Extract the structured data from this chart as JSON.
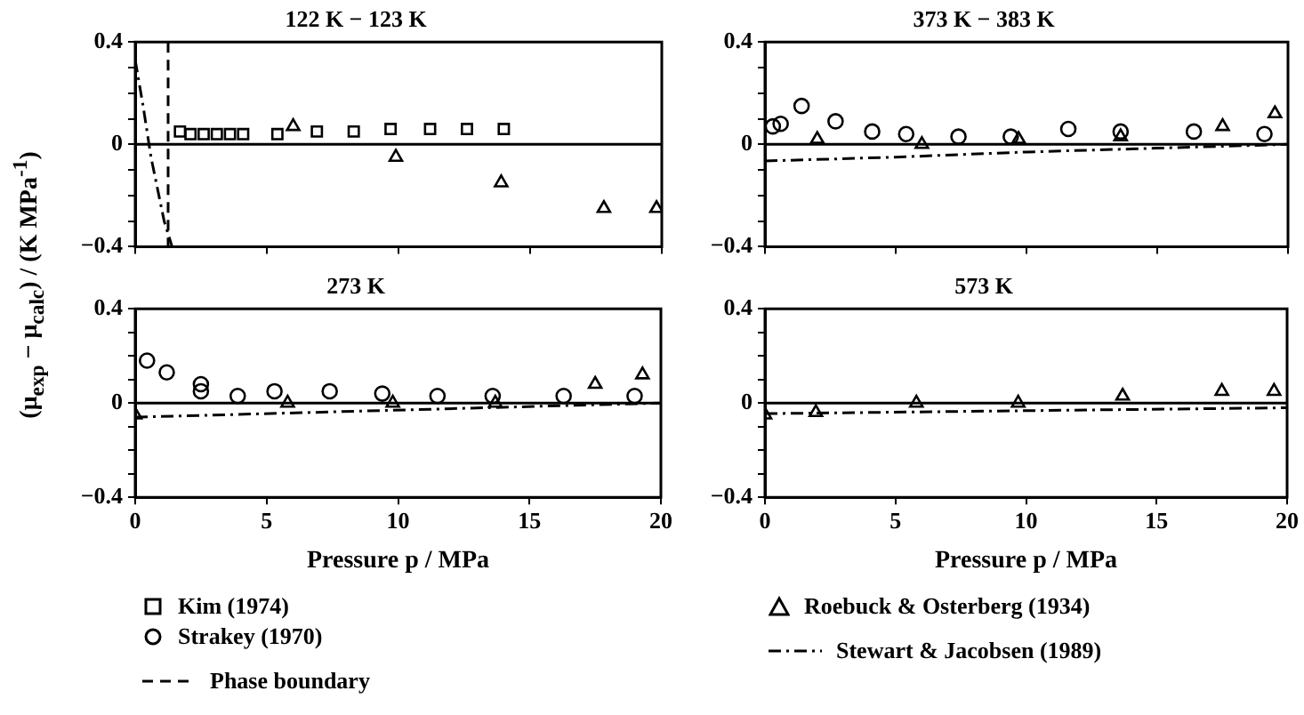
{
  "chart_data": [
    {
      "type": "scatter",
      "title": "122 K − 123 K",
      "ylabel": "(μ$_{exp}$ − μ$_{calc}$) / (K MPa$^{-1}$)",
      "xlim": [
        0,
        20
      ],
      "xticks": [
        0,
        5,
        10,
        15,
        20
      ],
      "ylim": [
        -0.4,
        0.4
      ],
      "yticks": [
        {
          "value": -0.4,
          "label": "−0.4"
        },
        {
          "value": -0.3,
          "label": null
        },
        {
          "value": -0.2,
          "label": null
        },
        {
          "value": -0.1,
          "label": null
        },
        {
          "value": 0,
          "label": "0"
        },
        {
          "value": 0.1,
          "label": null
        },
        {
          "value": 0.2,
          "label": null
        },
        {
          "value": 0.3,
          "label": null
        },
        {
          "value": 0.4,
          "label": "0.4"
        }
      ],
      "tick_labels": "y",
      "legend": "bottom",
      "ref_lines": [
        {
          "axis": "y",
          "value": 0
        }
      ],
      "series": [
        {
          "name": "Kim (1974)",
          "type": "scatter",
          "marker": "square",
          "color": "#000000",
          "x": [
            1.7,
            2.1,
            2.6,
            3.1,
            3.6,
            4.1,
            5.4,
            6.9,
            8.3,
            9.7,
            11.2,
            12.6,
            14.0
          ],
          "values": [
            0.05,
            0.04,
            0.04,
            0.04,
            0.04,
            0.04,
            0.04,
            0.05,
            0.05,
            0.06,
            0.06,
            0.06,
            0.06
          ]
        },
        {
          "type": "scatter",
          "marker": "triangle",
          "color": "#000000",
          "x": [
            6.0,
            9.9,
            13.9,
            17.8,
            19.8
          ],
          "values": [
            0.07,
            -0.05,
            -0.15,
            -0.25,
            -0.25
          ]
        },
        {
          "name": "Phase boundary",
          "type": "line",
          "marker": "none",
          "line_style": "dashed",
          "color": "#000000",
          "x": [
            1.25,
            1.25
          ],
          "values": [
            0.4,
            -0.4
          ]
        },
        {
          "type": "line",
          "marker": "none",
          "line_style": "dotted",
          "color": "#000000",
          "x": [
            0,
            0.3,
            0.6,
            0.9,
            1.1,
            1.4
          ],
          "values": [
            0.33,
            0.15,
            -0.05,
            -0.2,
            -0.3,
            -0.4
          ]
        }
      ]
    },
    {
      "type": "scatter",
      "title": "373 K − 383 K",
      "xlim": [
        0,
        20
      ],
      "xticks": [
        0,
        5,
        10,
        15,
        20
      ],
      "ylim": [
        -0.4,
        0.4
      ],
      "yticks": [
        {
          "value": -0.4,
          "label": "−0.4"
        },
        {
          "value": -0.3,
          "label": null
        },
        {
          "value": -0.2,
          "label": null
        },
        {
          "value": -0.1,
          "label": null
        },
        {
          "value": 0,
          "label": "0"
        },
        {
          "value": 0.1,
          "label": null
        },
        {
          "value": 0.2,
          "label": null
        },
        {
          "value": 0.3,
          "label": null
        },
        {
          "value": 0.4,
          "label": "0.4"
        }
      ],
      "tick_labels": "y",
      "legend": "bottom",
      "ref_lines": [
        {
          "axis": "y",
          "value": 0
        }
      ],
      "series": [
        {
          "type": "scatter",
          "marker": "circle",
          "color": "#000000",
          "x": [
            0.3,
            0.6,
            1.4,
            2.7,
            4.1,
            5.4,
            7.4,
            9.4,
            11.6,
            13.6,
            16.4,
            19.1
          ],
          "values": [
            0.07,
            0.08,
            0.15,
            0.09,
            0.05,
            0.04,
            0.03,
            0.03,
            0.06,
            0.05,
            0.05,
            0.04
          ]
        },
        {
          "name": "Roebuck & Osterberg (1934)",
          "type": "scatter",
          "marker": "triangle",
          "color": "#000000",
          "x": [
            2.0,
            6.0,
            9.7,
            13.6,
            17.5,
            19.5
          ],
          "values": [
            0.02,
            0.0,
            0.02,
            0.03,
            0.07,
            0.12
          ]
        },
        {
          "type": "line",
          "marker": "none",
          "line_style": "dotted",
          "color": "#000000",
          "x": [
            0,
            5,
            10,
            15,
            20
          ],
          "values": [
            -0.065,
            -0.05,
            -0.03,
            -0.015,
            0.0
          ]
        }
      ]
    },
    {
      "type": "scatter",
      "title": "273 K",
      "xlabel": "Pressure p / MPa",
      "xlim": [
        0,
        20
      ],
      "xticks": [
        0,
        5,
        10,
        15,
        20
      ],
      "ylim": [
        -0.4,
        0.4
      ],
      "yticks": [
        {
          "value": -0.4,
          "label": "−0.4"
        },
        {
          "value": -0.3,
          "label": null
        },
        {
          "value": -0.2,
          "label": null
        },
        {
          "value": -0.1,
          "label": null
        },
        {
          "value": 0,
          "label": "0"
        },
        {
          "value": 0.1,
          "label": null
        },
        {
          "value": 0.2,
          "label": null
        },
        {
          "value": 0.3,
          "label": null
        },
        {
          "value": 0.4,
          "label": "0.4"
        }
      ],
      "legend": "bottom",
      "ref_lines": [
        {
          "axis": "y",
          "value": 0
        }
      ],
      "series": [
        {
          "name": "Strakey (1970)",
          "type": "scatter",
          "marker": "circle",
          "color": "#000000",
          "x": [
            0.45,
            1.2,
            2.5,
            2.5,
            3.9,
            5.3,
            7.4,
            9.4,
            11.5,
            13.6,
            16.3,
            19.0
          ],
          "values": [
            0.18,
            0.13,
            0.08,
            0.05,
            0.03,
            0.05,
            0.05,
            0.04,
            0.03,
            0.03,
            0.03,
            0.03
          ]
        },
        {
          "type": "scatter",
          "marker": "triangle",
          "color": "#000000",
          "x": [
            0,
            5.8,
            9.8,
            13.7,
            17.5,
            19.3
          ],
          "values": [
            -0.05,
            0.0,
            0.0,
            0.0,
            0.08,
            0.12
          ]
        },
        {
          "type": "line",
          "marker": "none",
          "line_style": "dotted",
          "color": "#000000",
          "x": [
            0,
            20
          ],
          "values": [
            -0.06,
            0.0
          ]
        }
      ]
    },
    {
      "type": "scatter",
      "title": "573 K",
      "xlabel": "Pressure p / MPa",
      "xlim": [
        0,
        20
      ],
      "xticks": [
        0,
        5,
        10,
        15,
        20
      ],
      "ylim": [
        -0.4,
        0.4
      ],
      "yticks": [
        {
          "value": -0.4,
          "label": "−0.4"
        },
        {
          "value": -0.3,
          "label": null
        },
        {
          "value": -0.2,
          "label": null
        },
        {
          "value": -0.1,
          "label": null
        },
        {
          "value": 0,
          "label": "0"
        },
        {
          "value": 0.1,
          "label": null
        },
        {
          "value": 0.2,
          "label": null
        },
        {
          "value": 0.3,
          "label": null
        },
        {
          "value": 0.4,
          "label": "0.4"
        }
      ],
      "legend": "bottom",
      "ref_lines": [
        {
          "axis": "y",
          "value": 0
        }
      ],
      "series": [
        {
          "type": "scatter",
          "marker": "triangle",
          "color": "#000000",
          "x": [
            0,
            1.95,
            5.8,
            9.7,
            13.7,
            17.5,
            19.5
          ],
          "values": [
            -0.05,
            -0.04,
            0.0,
            0.0,
            0.03,
            0.05,
            0.05
          ]
        },
        {
          "name": "Stewart & Jacobsen (1989)",
          "type": "line",
          "marker": "none",
          "line_style": "dotted",
          "color": "#000000",
          "x": [
            0,
            20
          ],
          "values": [
            -0.045,
            -0.02
          ]
        }
      ]
    }
  ]
}
